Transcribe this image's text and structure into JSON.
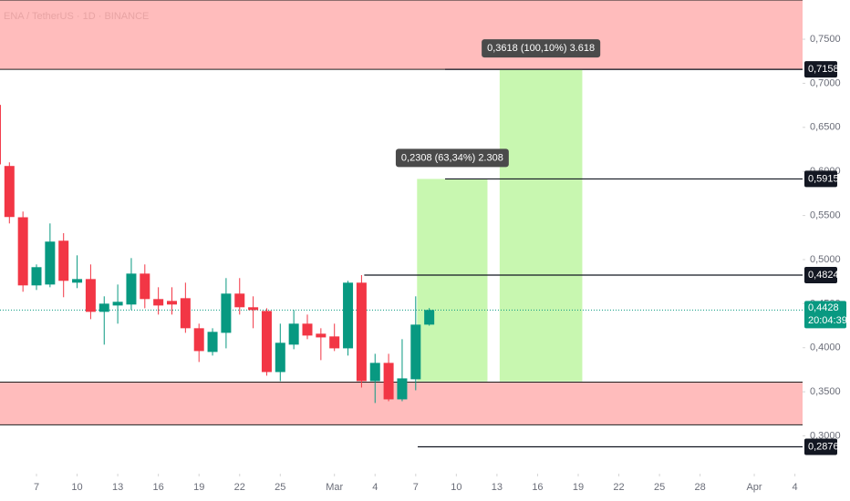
{
  "chart_data": {
    "type": "candlestick",
    "title": "ENA / TetherUS · 1D · BINANCE",
    "x": [
      -3,
      -2,
      -1,
      0,
      1,
      2,
      3,
      4,
      5,
      6,
      7,
      8,
      9,
      10,
      11,
      12,
      13,
      14,
      15,
      16,
      17,
      18,
      19,
      20,
      21,
      22,
      23,
      24,
      25,
      26,
      27,
      28,
      29
    ],
    "open": [
      0.6755,
      0.6062,
      0.548,
      0.4707,
      0.4717,
      0.5214,
      0.4738,
      0.4779,
      0.4407,
      0.4479,
      0.449,
      0.4841,
      0.4552,
      0.4531,
      0.4562,
      0.4221,
      0.3952,
      0.4169,
      0.4614,
      0.4459,
      0.4417,
      0.3724,
      0.4035,
      0.4273,
      0.4159,
      0.4128,
      0.3993,
      0.4738,
      0.3621,
      0.3828,
      0.3414,
      0.3642,
      0.4262
    ],
    "high": [
      0.68,
      0.6103,
      0.5545,
      0.4945,
      0.541,
      0.53,
      0.5048,
      0.4945,
      0.4583,
      0.4717,
      0.5017,
      0.4945,
      0.4686,
      0.4686,
      0.4738,
      0.4273,
      0.4221,
      0.479,
      0.479,
      0.4583,
      0.4448,
      0.4273,
      0.4428,
      0.4376,
      0.4221,
      0.4273,
      0.4759,
      0.4824,
      0.3931,
      0.3931,
      0.4097,
      0.4583,
      0.445
    ],
    "low": [
      0.6,
      0.541,
      0.4635,
      0.4655,
      0.4686,
      0.4573,
      0.4676,
      0.4324,
      0.4035,
      0.4273,
      0.4428,
      0.4448,
      0.4376,
      0.4376,
      0.4169,
      0.3838,
      0.3911,
      0.3993,
      0.4376,
      0.4221,
      0.3683,
      0.3621,
      0.3983,
      0.4097,
      0.3859,
      0.3962,
      0.3911,
      0.3548,
      0.3373,
      0.3393,
      0.3393,
      0.3517,
      0.425
    ],
    "close": [
      0.608,
      0.5483,
      0.4707,
      0.4914,
      0.5204,
      0.4759,
      0.4779,
      0.4407,
      0.45,
      0.4521,
      0.4841,
      0.4552,
      0.4479,
      0.449,
      0.4221,
      0.3962,
      0.418,
      0.4614,
      0.4459,
      0.4428,
      0.3724,
      0.4056,
      0.4273,
      0.4138,
      0.4117,
      0.3993,
      0.4738,
      0.3621,
      0.3828,
      0.3414,
      0.3652,
      0.4262,
      0.4428
    ],
    "up_color": "#089981",
    "down_color": "#f23645",
    "xlim": [
      -2.694,
      56.566
    ],
    "xticks": [
      {
        "value": 0,
        "label": "7"
      },
      {
        "value": 3,
        "label": "10"
      },
      {
        "value": 6,
        "label": "13"
      },
      {
        "value": 9,
        "label": "16"
      },
      {
        "value": 12,
        "label": "19"
      },
      {
        "value": 15,
        "label": "22"
      },
      {
        "value": 18,
        "label": "25"
      },
      {
        "value": 22,
        "label": "Mar"
      },
      {
        "value": 25,
        "label": "4"
      },
      {
        "value": 28,
        "label": "7"
      },
      {
        "value": 31,
        "label": "10"
      },
      {
        "value": 34,
        "label": "13"
      },
      {
        "value": 37,
        "label": "16"
      },
      {
        "value": 40,
        "label": "19"
      },
      {
        "value": 43,
        "label": "22"
      },
      {
        "value": 46,
        "label": "25"
      },
      {
        "value": 49,
        "label": "28"
      },
      {
        "value": 53,
        "label": "Apr"
      },
      {
        "value": 56,
        "label": "4"
      }
    ],
    "ylim": [
      0.2571,
      0.7945
    ],
    "yticks": [
      {
        "value": 0.3,
        "label": "0,3000"
      },
      {
        "value": 0.35,
        "label": "0,3500"
      },
      {
        "value": 0.4,
        "label": "0,4000"
      },
      {
        "value": 0.45,
        "label": "0,4500"
      },
      {
        "value": 0.5,
        "label": "0,5000"
      },
      {
        "value": 0.55,
        "label": "0,5500"
      },
      {
        "value": 0.6,
        "label": "0,6000"
      },
      {
        "value": 0.65,
        "label": "0,6500"
      },
      {
        "value": 0.7,
        "label": "0,7000"
      },
      {
        "value": 0.75,
        "label": "0,7500"
      }
    ],
    "zones": [
      {
        "from": 0.7158,
        "to": 0.7945,
        "color": "#ffbcbc"
      },
      {
        "from": 0.3125,
        "to": 0.361,
        "color": "#ffbcbc"
      }
    ],
    "boxes": [
      {
        "x": [
          28.1,
          33.3
        ],
        "y": [
          0.3618,
          0.5915
        ],
        "color": "#c8f7b0",
        "label": "0,2308 (63,34%) 2.308"
      },
      {
        "x": [
          34.2,
          40.3
        ],
        "y": [
          0.3618,
          0.7158
        ],
        "color": "#c8f7b0",
        "label": "0,3618 (100,10%) 3.618"
      }
    ],
    "levels": [
      {
        "value": 0.7158,
        "label": "0,7158",
        "from": 30.17
      },
      {
        "value": 0.5915,
        "label": "0,5915",
        "from": 30.17
      },
      {
        "value": 0.4824,
        "label": "0,4824",
        "from": 24.2
      },
      {
        "value": 0.2876,
        "label": "0,2876",
        "from": 28.15
      }
    ],
    "current": {
      "value": 0.4428,
      "label": "0,4428",
      "countdown": "20:04:39",
      "color": "#089981"
    }
  }
}
